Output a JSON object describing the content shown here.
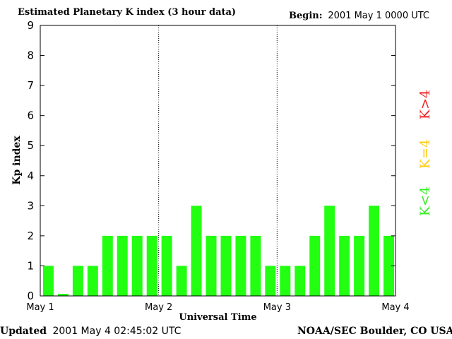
{
  "chart_data": {
    "type": "bar",
    "title": "Estimated Planetary K index (3 hour data)",
    "begin_label": "Begin:",
    "begin_value": "2001 May 1 0000 UTC",
    "xlabel": "Universal Time",
    "ylabel": "Kp index",
    "ylim": [
      0,
      9
    ],
    "yticks": [
      "0",
      "1",
      "2",
      "3",
      "4",
      "5",
      "6",
      "7",
      "8",
      "9"
    ],
    "x_day_labels": [
      "May 1",
      "May 2",
      "May 3",
      "May 4"
    ],
    "values": [
      1,
      0.07,
      1,
      1,
      2,
      2,
      2,
      2,
      2,
      1,
      3,
      2,
      2,
      2,
      2,
      1,
      1,
      1,
      2,
      3,
      2,
      2,
      3,
      2
    ],
    "bar_color": "#22ff11",
    "grid": false,
    "day_separators": "dotted",
    "legend": [
      {
        "label": "K<4",
        "color": "#33ee22"
      },
      {
        "label": "K=4",
        "color": "#ffcc11"
      },
      {
        "label": "K>4",
        "color": "#ee2222"
      }
    ],
    "legend_placement": "right, vertical"
  },
  "footer": {
    "updated_label": "Updated",
    "updated_value": "2001 May  4 02:45:02 UTC",
    "source": "NOAA/SEC Boulder, CO USA"
  }
}
